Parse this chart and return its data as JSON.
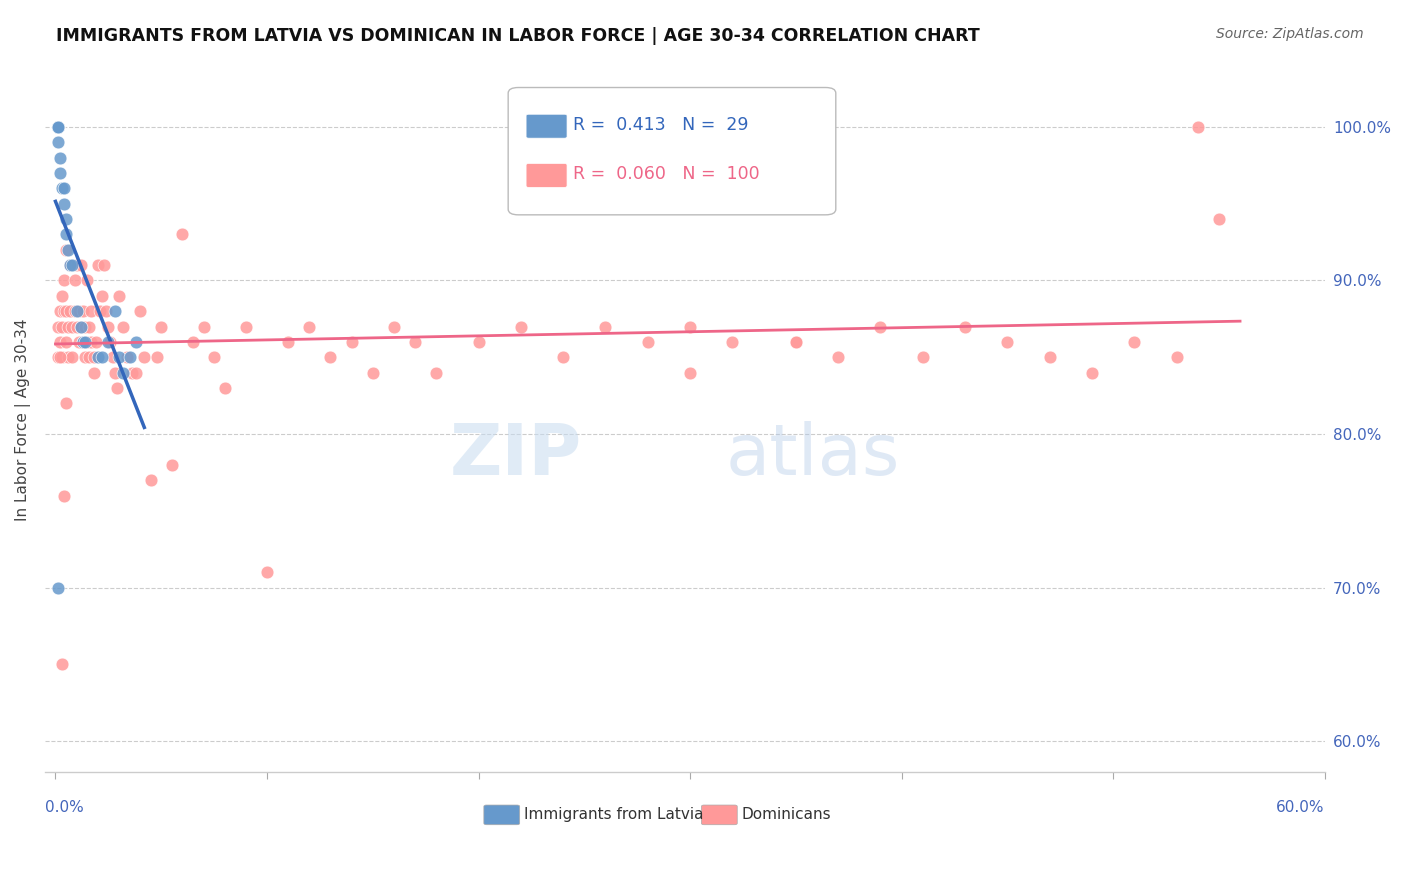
{
  "title": "IMMIGRANTS FROM LATVIA VS DOMINICAN IN LABOR FORCE | AGE 30-34 CORRELATION CHART",
  "source": "Source: ZipAtlas.com",
  "ylabel": "In Labor Force | Age 30-34",
  "legend_latvia": "Immigrants from Latvia",
  "legend_dominican": "Dominicans",
  "r_latvia": 0.413,
  "n_latvia": 29,
  "r_dominican": 0.06,
  "n_dominican": 100,
  "color_latvia": "#6699CC",
  "color_dominican": "#FF9999",
  "color_trendline_latvia": "#3366BB",
  "color_trendline_dominican": "#EE6688",
  "color_axis_labels": "#4466BB",
  "latvia_x": [
    0.001,
    0.001,
    0.001,
    0.001,
    0.001,
    0.001,
    0.002,
    0.002,
    0.003,
    0.004,
    0.004,
    0.005,
    0.005,
    0.006,
    0.007,
    0.008,
    0.01,
    0.012,
    0.013,
    0.014,
    0.02,
    0.022,
    0.025,
    0.028,
    0.03,
    0.032,
    0.035,
    0.038,
    0.001
  ],
  "latvia_y": [
    1.0,
    1.0,
    1.0,
    1.0,
    1.0,
    0.99,
    0.98,
    0.97,
    0.96,
    0.96,
    0.95,
    0.94,
    0.93,
    0.92,
    0.91,
    0.91,
    0.88,
    0.87,
    0.86,
    0.86,
    0.85,
    0.85,
    0.86,
    0.88,
    0.85,
    0.84,
    0.85,
    0.86,
    0.7
  ],
  "dominican_x": [
    0.001,
    0.001,
    0.002,
    0.002,
    0.003,
    0.003,
    0.003,
    0.004,
    0.004,
    0.005,
    0.005,
    0.005,
    0.006,
    0.006,
    0.007,
    0.007,
    0.008,
    0.008,
    0.009,
    0.009,
    0.01,
    0.01,
    0.011,
    0.011,
    0.012,
    0.012,
    0.013,
    0.013,
    0.014,
    0.014,
    0.015,
    0.015,
    0.016,
    0.016,
    0.017,
    0.017,
    0.018,
    0.018,
    0.019,
    0.02,
    0.021,
    0.022,
    0.023,
    0.024,
    0.025,
    0.026,
    0.027,
    0.028,
    0.029,
    0.03,
    0.032,
    0.034,
    0.036,
    0.038,
    0.04,
    0.042,
    0.045,
    0.048,
    0.05,
    0.055,
    0.06,
    0.065,
    0.07,
    0.075,
    0.08,
    0.09,
    0.1,
    0.11,
    0.12,
    0.13,
    0.14,
    0.15,
    0.16,
    0.17,
    0.18,
    0.2,
    0.22,
    0.24,
    0.26,
    0.28,
    0.3,
    0.32,
    0.35,
    0.37,
    0.39,
    0.41,
    0.43,
    0.45,
    0.47,
    0.49,
    0.51,
    0.53,
    0.54,
    0.55,
    0.002,
    0.003,
    0.004,
    0.005,
    0.3,
    0.35
  ],
  "dominican_y": [
    0.85,
    0.87,
    0.88,
    0.86,
    0.89,
    0.87,
    0.85,
    0.9,
    0.88,
    0.92,
    0.88,
    0.86,
    0.87,
    0.85,
    0.91,
    0.88,
    0.87,
    0.85,
    0.9,
    0.88,
    0.91,
    0.87,
    0.88,
    0.86,
    0.91,
    0.87,
    0.88,
    0.86,
    0.87,
    0.85,
    0.9,
    0.86,
    0.87,
    0.85,
    0.88,
    0.86,
    0.85,
    0.84,
    0.86,
    0.91,
    0.88,
    0.89,
    0.91,
    0.88,
    0.87,
    0.86,
    0.85,
    0.84,
    0.83,
    0.89,
    0.87,
    0.85,
    0.84,
    0.84,
    0.88,
    0.85,
    0.77,
    0.85,
    0.87,
    0.78,
    0.93,
    0.86,
    0.87,
    0.85,
    0.83,
    0.87,
    0.71,
    0.86,
    0.87,
    0.85,
    0.86,
    0.84,
    0.87,
    0.86,
    0.84,
    0.86,
    0.87,
    0.85,
    0.87,
    0.86,
    0.87,
    0.86,
    0.86,
    0.85,
    0.87,
    0.85,
    0.87,
    0.86,
    0.85,
    0.84,
    0.86,
    0.85,
    1.0,
    0.94,
    0.85,
    0.65,
    0.76,
    0.82,
    0.84,
    0.86
  ],
  "xlim": [
    -0.005,
    0.6
  ],
  "ylim": [
    0.58,
    1.038
  ],
  "ytick_vals": [
    0.6,
    0.7,
    0.8,
    0.9,
    1.0
  ],
  "ytick_labels": [
    "60.0%",
    "70.0%",
    "80.0%",
    "90.0%",
    "100.0%"
  ]
}
